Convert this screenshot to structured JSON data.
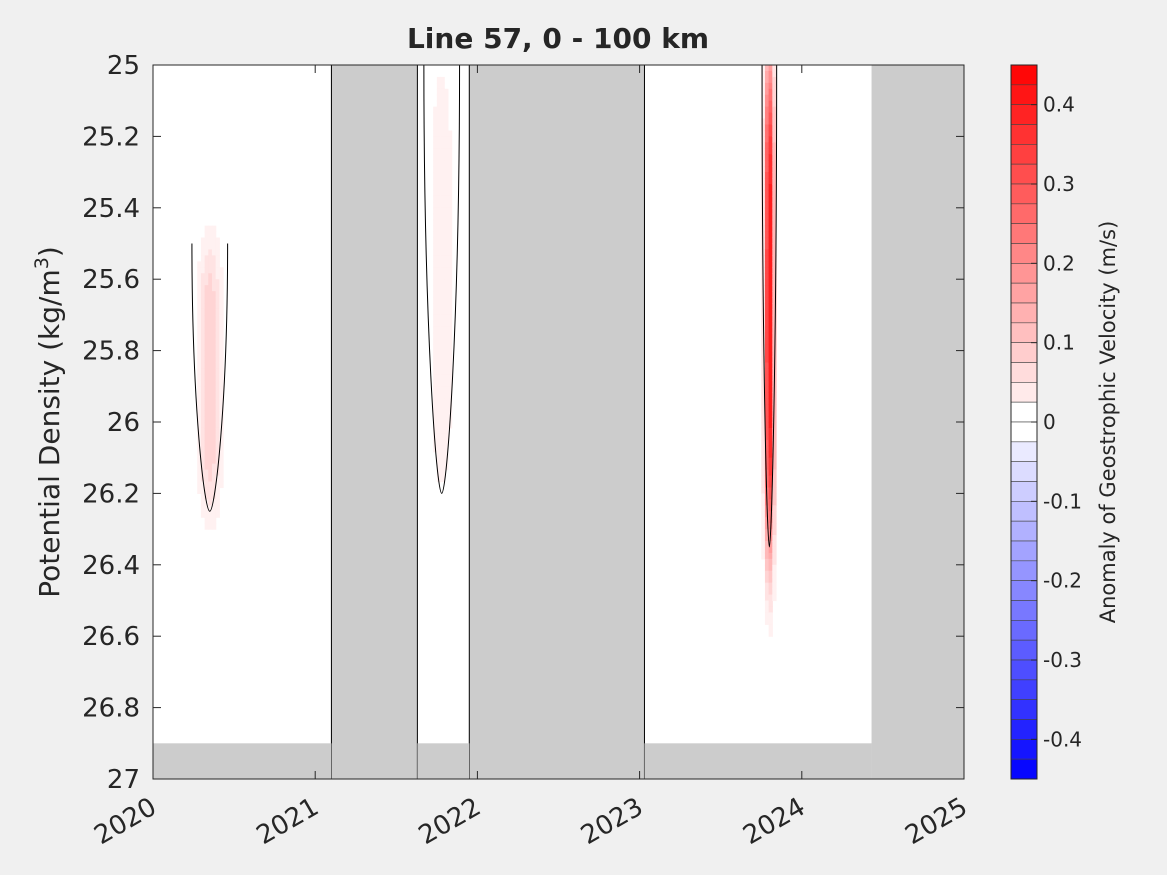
{
  "chart_data": {
    "type": "heatmap",
    "title": "Line 57, 0 - 100 km",
    "ylabel_base": "Potential Density (kg/m",
    "ylabel_sup": "3",
    "ylabel_close": ")",
    "xlim": [
      2020.0,
      2025.0
    ],
    "ylim": [
      25.0,
      27.0
    ],
    "y_reversed": true,
    "x_ticks": [
      "2020",
      "2021",
      "2022",
      "2023",
      "2024",
      "2025"
    ],
    "x_tick_values": [
      2020,
      2021,
      2022,
      2023,
      2024,
      2025
    ],
    "y_ticks": [
      "25",
      "25.2",
      "25.4",
      "25.6",
      "25.8",
      "26",
      "26.2",
      "26.4",
      "26.6",
      "26.8",
      "27"
    ],
    "y_tick_values": [
      25.0,
      25.2,
      25.4,
      25.6,
      25.8,
      26.0,
      26.2,
      26.4,
      26.6,
      26.8,
      27.0
    ],
    "colorbar": {
      "label": "Anomaly of Geostrophic Velocity (m/s)",
      "clim": [
        -0.45,
        0.45
      ],
      "step": 0.025,
      "ticks": [
        "0.4",
        "0.3",
        "0.2",
        "0.1",
        "0",
        "-0.1",
        "-0.2",
        "-0.3",
        "-0.4"
      ],
      "tick_values": [
        0.4,
        0.3,
        0.2,
        0.1,
        0.0,
        -0.1,
        -0.2,
        -0.3,
        -0.4
      ],
      "colors": {
        "negative": "#0000ff",
        "zero": "#ffffff",
        "positive": "#ff0000"
      }
    },
    "no_data_color": "#cccccc",
    "gap_periods": [
      [
        2021.1,
        2021.63
      ],
      [
        2021.95,
        2023.03
      ]
    ],
    "data_segments": [
      {
        "x_start": 2019.92,
        "x_end": 2021.1,
        "sigma_max": 26.9
      },
      {
        "x_start": 2021.63,
        "x_end": 2021.95,
        "sigma_max": 26.9
      },
      {
        "x_start": 2023.03,
        "x_end": 2024.43,
        "sigma_max": 26.9
      }
    ],
    "notable_features": [
      {
        "x": 2023.8,
        "sigma_range": [
          25.0,
          26.35
        ],
        "peak_anomaly": 0.45
      },
      {
        "x": 2020.35,
        "sigma_range": [
          25.5,
          26.25
        ],
        "peak_anomaly": 0.1
      },
      {
        "x": 2021.78,
        "sigma_range": [
          25.0,
          26.2
        ],
        "peak_anomaly": 0.05
      }
    ]
  }
}
